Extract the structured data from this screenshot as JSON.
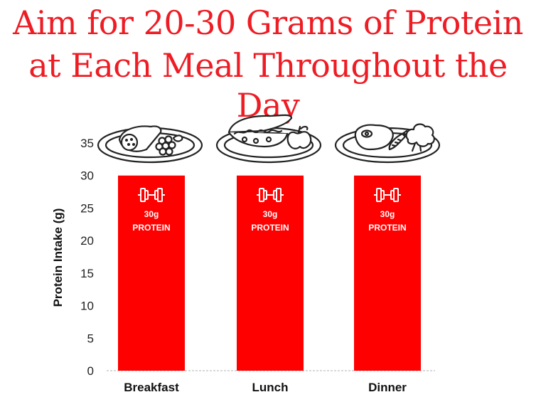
{
  "title": {
    "line1": "Aim for 20-30 Grams of Protein",
    "line2": "at Each Meal Throughout the Day"
  },
  "colors": {
    "accent": "#ee1c24",
    "bar": "#ff0000",
    "text": "#111111"
  },
  "icons": [
    "plate-burrito-grapes-icon",
    "plate-sandwich-apple-icon",
    "plate-steak-carrot-broccoli-icon",
    "dumbbell-icon"
  ],
  "chart_data": {
    "type": "bar",
    "categories": [
      "Breakfast",
      "Lunch",
      "Dinner"
    ],
    "values": [
      30,
      30,
      30
    ],
    "bar_labels": [
      {
        "amount": "30g",
        "unit": "PROTEIN"
      },
      {
        "amount": "30g",
        "unit": "PROTEIN"
      },
      {
        "amount": "30g",
        "unit": "PROTEIN"
      }
    ],
    "xlabel": "",
    "ylabel": "Protein Intake (g)",
    "ylim": [
      0,
      35
    ],
    "yticks": [
      0,
      5,
      10,
      15,
      20,
      25,
      30,
      35
    ],
    "grid": false
  }
}
